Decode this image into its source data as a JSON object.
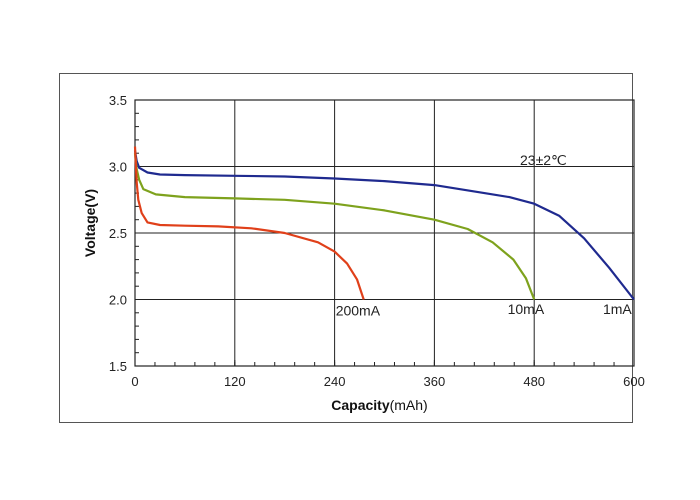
{
  "chart_data": {
    "type": "line",
    "xlabel_bold": "Capacity",
    "xlabel_unit": "(mAh)",
    "ylabel": "Voltage(V)",
    "xlim": [
      0,
      600
    ],
    "ylim": [
      1.5,
      3.5
    ],
    "x_ticks": [
      0,
      120,
      240,
      360,
      480,
      600
    ],
    "y_ticks": [
      1.5,
      2.0,
      2.5,
      3.0,
      3.5
    ],
    "x_tick_labels": [
      "0",
      "120",
      "240",
      "360",
      "480",
      "600"
    ],
    "y_tick_labels": [
      "1.5",
      "2.0",
      "2.5",
      "3.0",
      "3.5"
    ],
    "grid": true,
    "annotation": "23±2℃",
    "series": [
      {
        "name": "1mA",
        "color": "#1f2a8f",
        "points": [
          [
            0,
            3.12
          ],
          [
            2,
            3.04
          ],
          [
            5,
            2.99
          ],
          [
            15,
            2.955
          ],
          [
            30,
            2.94
          ],
          [
            60,
            2.935
          ],
          [
            120,
            2.93
          ],
          [
            180,
            2.925
          ],
          [
            240,
            2.91
          ],
          [
            300,
            2.89
          ],
          [
            360,
            2.86
          ],
          [
            420,
            2.8
          ],
          [
            450,
            2.77
          ],
          [
            480,
            2.72
          ],
          [
            510,
            2.63
          ],
          [
            540,
            2.46
          ],
          [
            570,
            2.24
          ],
          [
            600,
            2.0
          ]
        ]
      },
      {
        "name": "10mA",
        "color": "#7ea21d",
        "points": [
          [
            0,
            3.1
          ],
          [
            2,
            2.98
          ],
          [
            5,
            2.9
          ],
          [
            10,
            2.83
          ],
          [
            25,
            2.79
          ],
          [
            60,
            2.77
          ],
          [
            120,
            2.76
          ],
          [
            180,
            2.75
          ],
          [
            240,
            2.72
          ],
          [
            300,
            2.67
          ],
          [
            360,
            2.6
          ],
          [
            400,
            2.53
          ],
          [
            430,
            2.43
          ],
          [
            455,
            2.3
          ],
          [
            470,
            2.16
          ],
          [
            480,
            2.0
          ]
        ]
      },
      {
        "name": "200mA",
        "color": "#e0401a",
        "points": [
          [
            0,
            3.15
          ],
          [
            2,
            2.88
          ],
          [
            4,
            2.75
          ],
          [
            8,
            2.65
          ],
          [
            15,
            2.58
          ],
          [
            30,
            2.56
          ],
          [
            60,
            2.555
          ],
          [
            100,
            2.55
          ],
          [
            140,
            2.535
          ],
          [
            180,
            2.5
          ],
          [
            220,
            2.43
          ],
          [
            240,
            2.36
          ],
          [
            255,
            2.27
          ],
          [
            267,
            2.15
          ],
          [
            275,
            2.0
          ]
        ]
      }
    ],
    "series_labels": [
      {
        "text": "1mA",
        "x": 580,
        "y": 1.89
      },
      {
        "text": "10mA",
        "x": 470,
        "y": 1.89
      },
      {
        "text": "200mA",
        "x": 268,
        "y": 1.88
      }
    ]
  }
}
